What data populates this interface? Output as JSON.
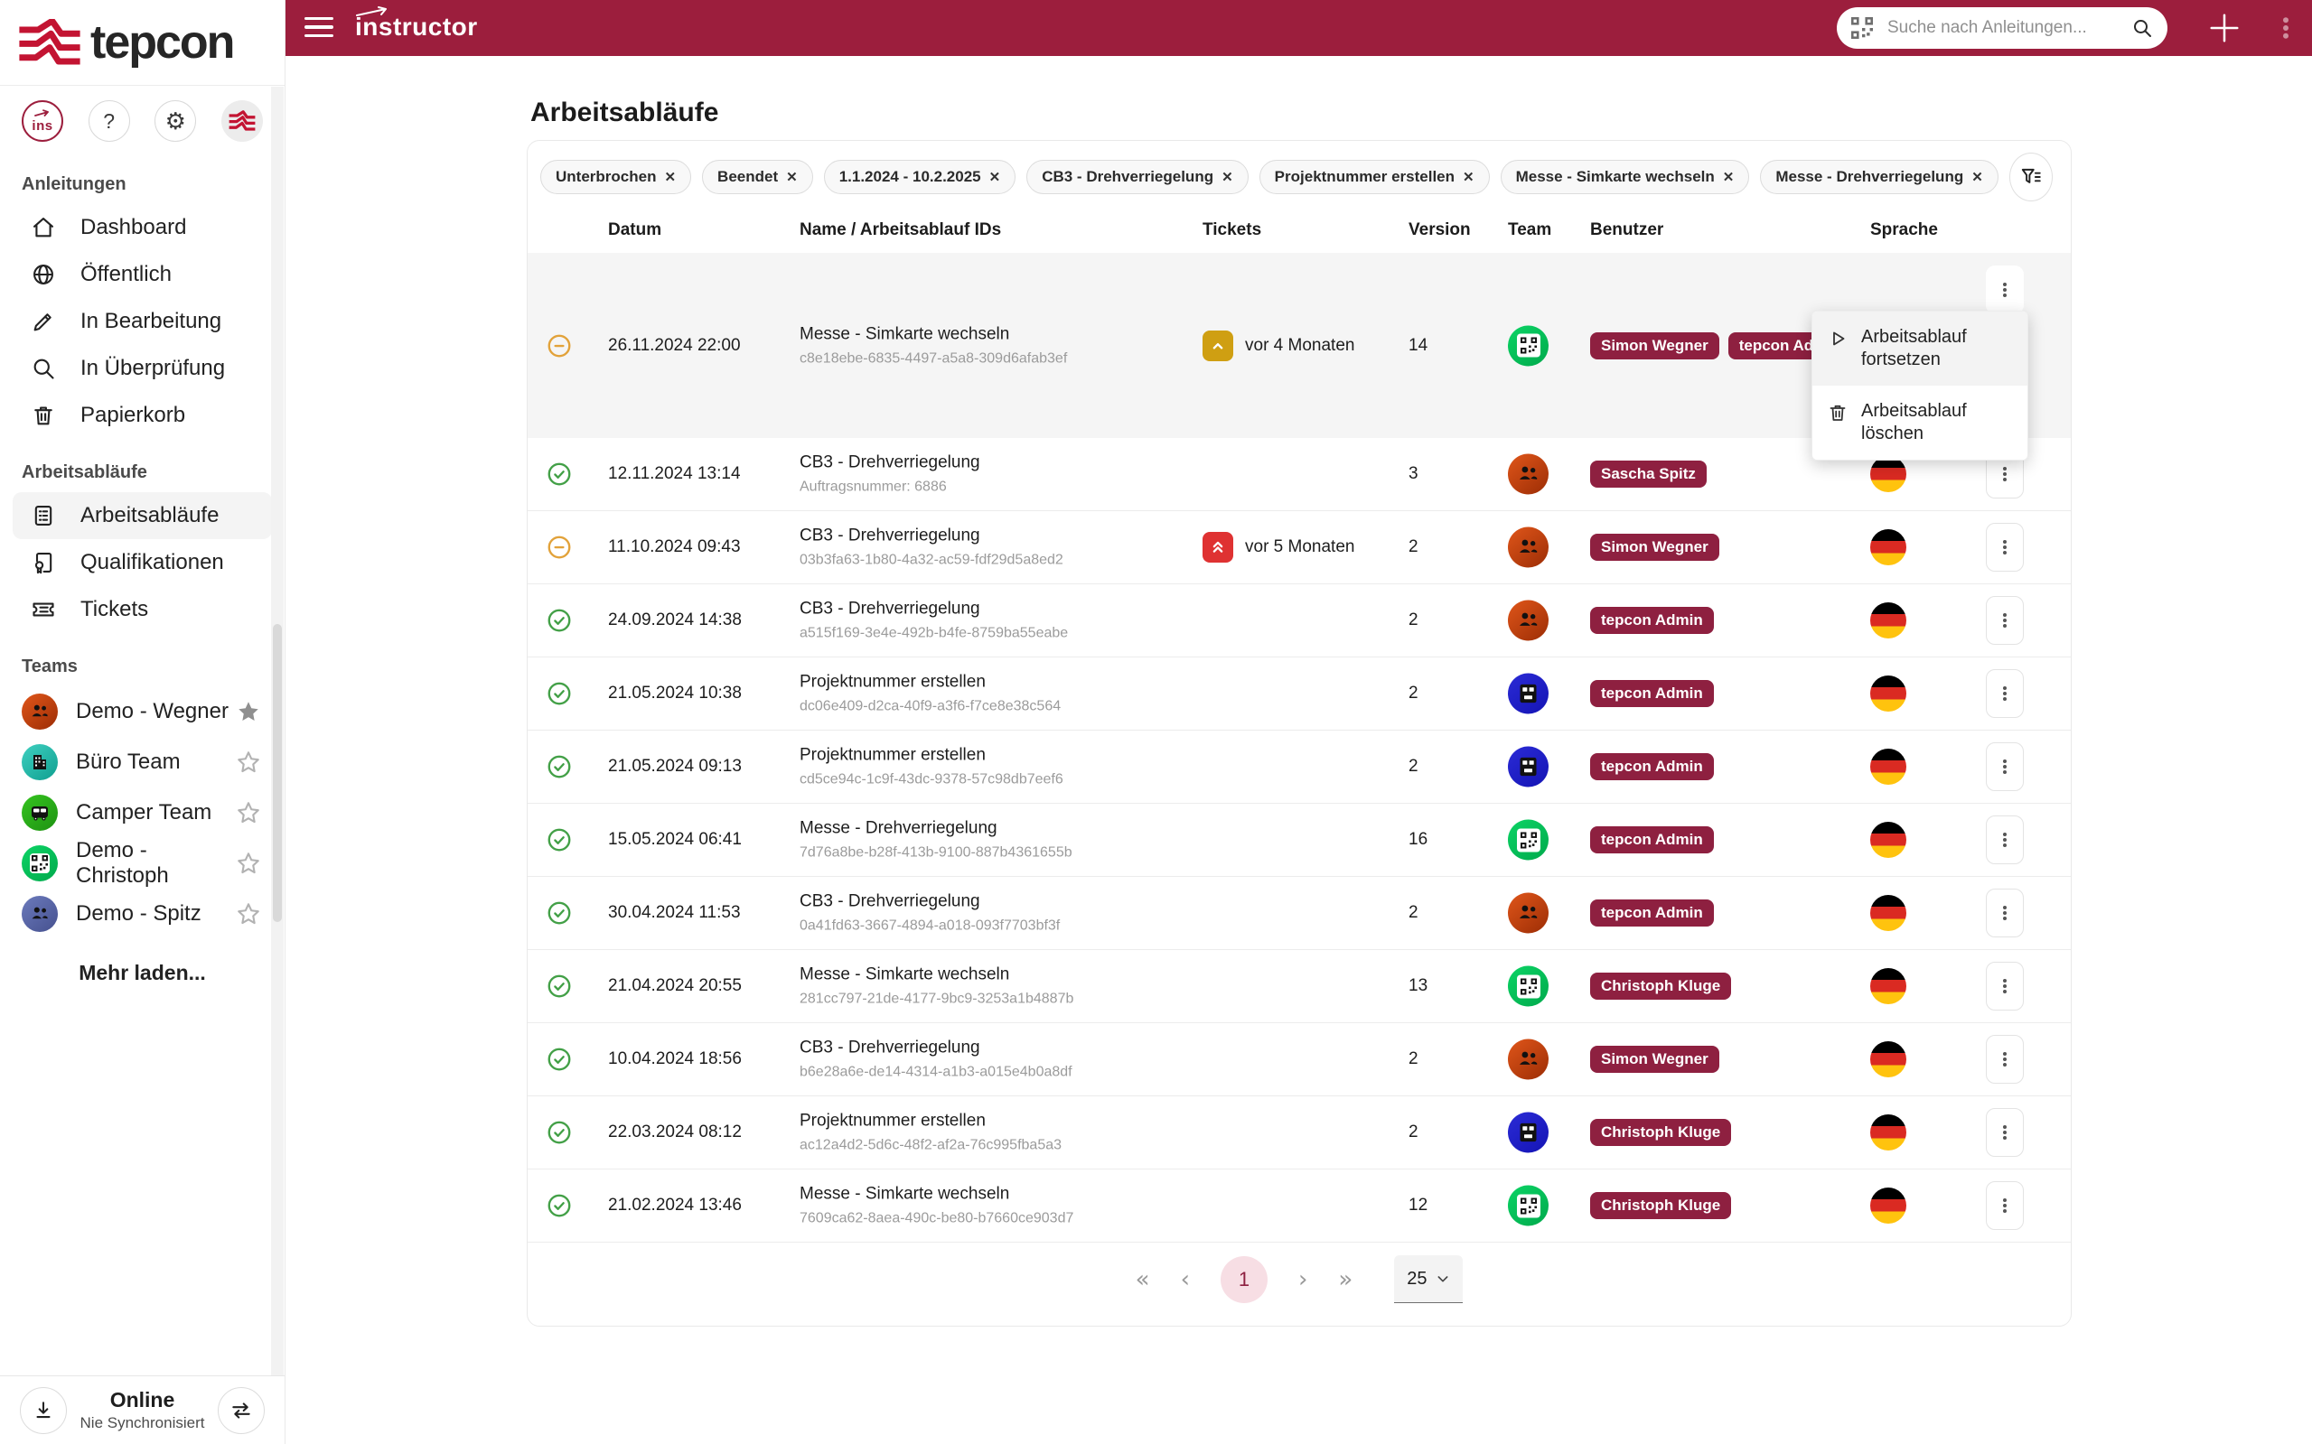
{
  "brand": {
    "logo_text": "tepcon",
    "app_name": "instructor"
  },
  "topbar": {
    "search_placeholder": "Suche nach Anleitungen..."
  },
  "page": {
    "title": "Arbeitsabläufe"
  },
  "colors": {
    "header_red": "#9c1e3d",
    "logo_red": "#c31432",
    "user_pill": "#8e2040",
    "status_done": "#43a047",
    "status_interrupted": "#e2a23a",
    "ticket_medium": "#cf9f12",
    "ticket_high": "#df3232",
    "page_circle_bg": "#f7dee4",
    "row_highlight": "#f5f5f5"
  },
  "sidebar": {
    "quick_icons": [
      "instructor-badge",
      "help",
      "settings",
      "account-avatar"
    ],
    "sections": [
      {
        "title": "Anleitungen",
        "items": [
          {
            "icon": "home",
            "label": "Dashboard"
          },
          {
            "icon": "globe",
            "label": "Öffentlich"
          },
          {
            "icon": "pencil",
            "label": "In Bearbeitung"
          },
          {
            "icon": "search",
            "label": "In Überprüfung"
          },
          {
            "icon": "trash",
            "label": "Papierkorb"
          }
        ]
      },
      {
        "title": "Arbeitsabläufe",
        "items": [
          {
            "icon": "clipboard-list",
            "label": "Arbeitsabläufe",
            "active": true
          },
          {
            "icon": "certificate",
            "label": "Qualifikationen"
          },
          {
            "icon": "ticket",
            "label": "Tickets"
          }
        ]
      }
    ],
    "teams": {
      "title": "Teams",
      "load_more": "Mehr laden...",
      "items": [
        {
          "name": "Demo - Wegner",
          "avatar": "people",
          "colors": [
            "#e0561a",
            "#9c2d05"
          ],
          "starred": true
        },
        {
          "name": "Büro Team",
          "avatar": "building",
          "colors": [
            "#3fd0c0",
            "#0f9f90"
          ],
          "starred": false
        },
        {
          "name": "Camper Team",
          "avatar": "bus",
          "colors": [
            "#35c41f",
            "#1e9212"
          ],
          "starred": false
        },
        {
          "name": "Demo - Christoph",
          "avatar": "qr",
          "colors": [
            "#0cd465",
            "#00a94c"
          ],
          "starred": false
        },
        {
          "name": "Demo - Spitz",
          "avatar": "people",
          "colors": [
            "#6b7abc",
            "#46518f"
          ],
          "starred": false
        }
      ]
    },
    "footer": {
      "status": "Online",
      "sync_state": "Nie Synchronisiert"
    }
  },
  "filters": {
    "remove_symbol": "✕",
    "chips": [
      "Unterbrochen",
      "Beendet",
      "1.1.2024 - 10.2.2025",
      "CB3 - Drehverriegelung",
      "Projektnummer erstellen",
      "Messe - Simkarte wechseln",
      "Messe - Drehverriegelung"
    ]
  },
  "table": {
    "columns": [
      "Datum",
      "Name / Arbeitsablauf IDs",
      "Tickets",
      "Version",
      "Team",
      "Benutzer",
      "Sprache"
    ],
    "rows": [
      {
        "status": "interrupted",
        "date": "26.11.2024 22:00",
        "name": "Messe - Simkarte wechseln",
        "sub": "c8e18ebe-6835-4497-a5a8-309d6afab3ef",
        "ticket": {
          "severity": "medium",
          "label": "vor 4 Monaten"
        },
        "version": "14",
        "team": {
          "avatar": "qr",
          "colors": [
            "#0cd465",
            "#00a94c"
          ]
        },
        "users": [
          "Simon Wegner",
          "tepcon Admin"
        ],
        "language": "de",
        "highlighted": true,
        "menu_open": true
      },
      {
        "status": "done",
        "date": "12.11.2024 13:14",
        "name": "CB3 - Drehverriegelung",
        "sub": "Auftragsnummer: 6886",
        "ticket": null,
        "version": "3",
        "team": {
          "avatar": "people",
          "colors": [
            "#e0561a",
            "#9c2d05"
          ]
        },
        "users": [
          "Sascha Spitz"
        ],
        "language": "de"
      },
      {
        "status": "interrupted",
        "date": "11.10.2024 09:43",
        "name": "CB3 - Drehverriegelung",
        "sub": "03b3fa63-1b80-4a32-ac59-fdf29d5a8ed2",
        "ticket": {
          "severity": "high",
          "label": "vor 5 Monaten"
        },
        "version": "2",
        "team": {
          "avatar": "people",
          "colors": [
            "#e0561a",
            "#9c2d05"
          ]
        },
        "users": [
          "Simon Wegner"
        ],
        "language": "de"
      },
      {
        "status": "done",
        "date": "24.09.2024 14:38",
        "name": "CB3 - Drehverriegelung",
        "sub": "a515f169-3e4e-492b-b4fe-8759ba55eabe",
        "ticket": null,
        "version": "2",
        "team": {
          "avatar": "people",
          "colors": [
            "#e0561a",
            "#9c2d05"
          ]
        },
        "users": [
          "tepcon Admin"
        ],
        "language": "de"
      },
      {
        "status": "done",
        "date": "21.05.2024 10:38",
        "name": "Projektnummer erstellen",
        "sub": "dc06e409-d2ca-40f9-a3f6-f7ce8e38c564",
        "ticket": null,
        "version": "2",
        "team": {
          "avatar": "machine",
          "colors": [
            "#2b2bd6",
            "#1414b4"
          ]
        },
        "users": [
          "tepcon Admin"
        ],
        "language": "de"
      },
      {
        "status": "done",
        "date": "21.05.2024 09:13",
        "name": "Projektnummer erstellen",
        "sub": "cd5ce94c-1c9f-43dc-9378-57c98db7eef6",
        "ticket": null,
        "version": "2",
        "team": {
          "avatar": "machine",
          "colors": [
            "#2b2bd6",
            "#1414b4"
          ]
        },
        "users": [
          "tepcon Admin"
        ],
        "language": "de"
      },
      {
        "status": "done",
        "date": "15.05.2024 06:41",
        "name": "Messe - Drehverriegelung",
        "sub": "7d76a8be-b28f-413b-9100-887b4361655b",
        "ticket": null,
        "version": "16",
        "team": {
          "avatar": "qr",
          "colors": [
            "#0cd465",
            "#00a94c"
          ]
        },
        "users": [
          "tepcon Admin"
        ],
        "language": "de"
      },
      {
        "status": "done",
        "date": "30.04.2024 11:53",
        "name": "CB3 - Drehverriegelung",
        "sub": "0a41fd63-3667-4894-a018-093f7703bf3f",
        "ticket": null,
        "version": "2",
        "team": {
          "avatar": "people",
          "colors": [
            "#e0561a",
            "#9c2d05"
          ]
        },
        "users": [
          "tepcon Admin"
        ],
        "language": "de"
      },
      {
        "status": "done",
        "date": "21.04.2024 20:55",
        "name": "Messe - Simkarte wechseln",
        "sub": "281cc797-21de-4177-9bc9-3253a1b4887b",
        "ticket": null,
        "version": "13",
        "team": {
          "avatar": "qr",
          "colors": [
            "#0cd465",
            "#00a94c"
          ]
        },
        "users": [
          "Christoph Kluge"
        ],
        "language": "de"
      },
      {
        "status": "done",
        "date": "10.04.2024 18:56",
        "name": "CB3 - Drehverriegelung",
        "sub": "b6e28a6e-de14-4314-a1b3-a015e4b0a8df",
        "ticket": null,
        "version": "2",
        "team": {
          "avatar": "people",
          "colors": [
            "#e0561a",
            "#9c2d05"
          ]
        },
        "users": [
          "Simon Wegner"
        ],
        "language": "de"
      },
      {
        "status": "done",
        "date": "22.03.2024 08:12",
        "name": "Projektnummer erstellen",
        "sub": "ac12a4d2-5d6c-48f2-af2a-76c995fba5a3",
        "ticket": null,
        "version": "2",
        "team": {
          "avatar": "machine",
          "colors": [
            "#2b2bd6",
            "#1414b4"
          ]
        },
        "users": [
          "Christoph Kluge"
        ],
        "language": "de"
      },
      {
        "status": "done",
        "date": "21.02.2024 13:46",
        "name": "Messe - Simkarte wechseln",
        "sub": "7609ca62-8aea-490c-be80-b7660ce903d7",
        "ticket": null,
        "version": "12",
        "team": {
          "avatar": "qr",
          "colors": [
            "#0cd465",
            "#00a94c"
          ]
        },
        "users": [
          "Christoph Kluge"
        ],
        "language": "de"
      }
    ]
  },
  "context_menu": {
    "items": [
      {
        "icon": "play",
        "label": "Arbeitsablauf fortsetzen"
      },
      {
        "icon": "trash",
        "label": "Arbeitsablauf löschen"
      }
    ]
  },
  "pagination": {
    "first": "«",
    "prev": "‹",
    "current": "1",
    "next": "›",
    "last": "»",
    "page_size": "25"
  }
}
